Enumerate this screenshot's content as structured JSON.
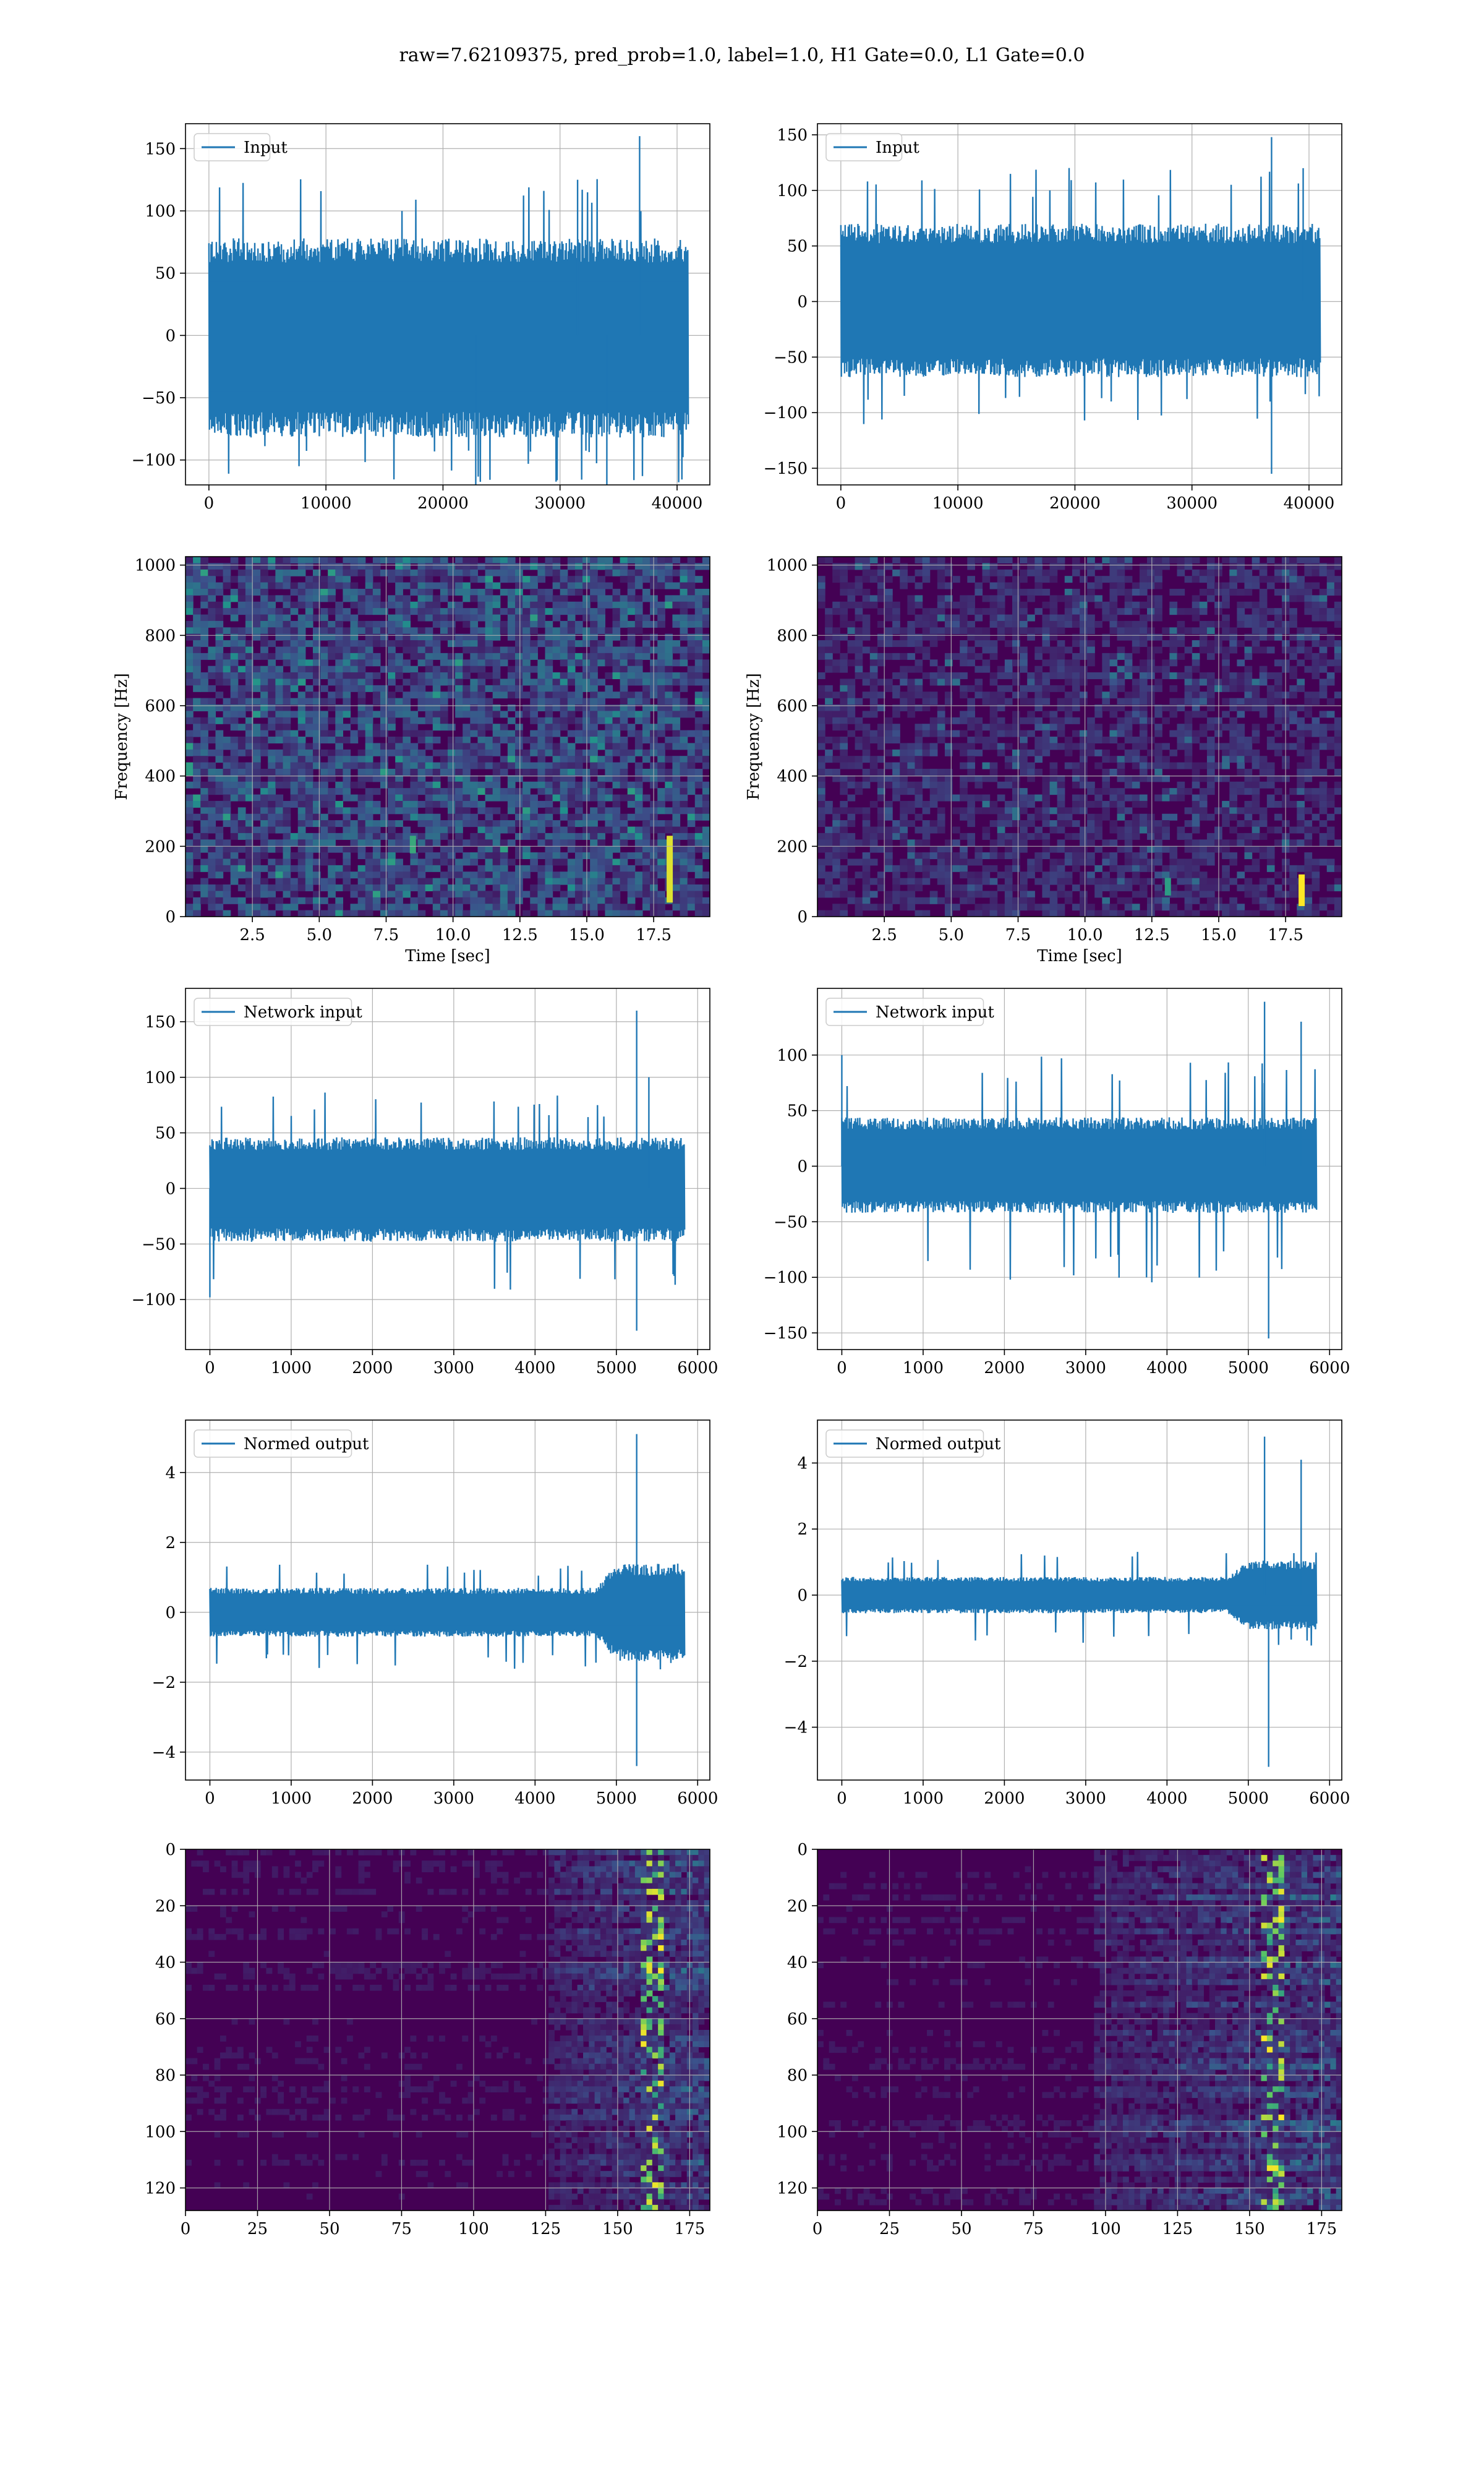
{
  "figure": {
    "title": "raw=7.62109375, pred_prob=1.0, label=1.0, H1 Gate=0.0, L1 Gate=0.0"
  },
  "colors": {
    "series": "#1f77b4",
    "grid": "#b0b0b0",
    "heatmap_low": "#440154",
    "heatmap_high": "#fde725"
  },
  "chart_data": [
    {
      "id": "h1-input",
      "type": "line",
      "row": 0,
      "col": 0,
      "legend": "Input",
      "legend_loc": "upper-left",
      "xlim": [
        -2000,
        42800
      ],
      "ylim": [
        -120,
        170
      ],
      "xticks": [
        0,
        10000,
        20000,
        30000,
        40000
      ],
      "yticks": [
        -100,
        -50,
        0,
        50,
        100,
        150
      ],
      "x_range": [
        0,
        40960
      ],
      "envelope": [
        -82,
        78
      ],
      "spikes_max": [
        118,
        160
      ],
      "spikes_min": [
        -110,
        -128
      ],
      "spike_events": [
        {
          "x": 36800,
          "y": 160
        },
        {
          "x": 34000,
          "y": -128
        },
        {
          "x": 31500,
          "y": 125
        },
        {
          "x": 22800,
          "y": -127
        }
      ]
    },
    {
      "id": "l1-input",
      "type": "line",
      "row": 0,
      "col": 1,
      "legend": "Input",
      "legend_loc": "upper-left",
      "xlim": [
        -2000,
        42800
      ],
      "ylim": [
        -165,
        160
      ],
      "xticks": [
        0,
        10000,
        20000,
        30000,
        40000
      ],
      "yticks": [
        -150,
        -100,
        -50,
        0,
        50,
        100,
        150
      ],
      "x_range": [
        0,
        40960
      ],
      "envelope": [
        -68,
        70
      ],
      "spikes_max": [
        110,
        148
      ],
      "spikes_min": [
        -104,
        -155
      ],
      "spike_events": [
        {
          "x": 36800,
          "y": 148
        },
        {
          "x": 36800,
          "y": -155
        },
        {
          "x": 39500,
          "y": 120
        }
      ]
    },
    {
      "id": "h1-spectrogram",
      "type": "heatmap",
      "row": 1,
      "col": 0,
      "xlabel": "Time [sec]",
      "ylabel": "Frequency [Hz]",
      "xlim": [
        0,
        19.6
      ],
      "ylim": [
        0,
        1024
      ],
      "xticks": [
        2.5,
        5.0,
        7.5,
        10.0,
        12.5,
        15.0,
        17.5
      ],
      "xtick_labels": [
        "2.5",
        "5.0",
        "7.5",
        "10.0",
        "12.5",
        "15.0",
        "17.5"
      ],
      "yticks": [
        0,
        200,
        400,
        600,
        800,
        1000
      ],
      "noise_level": 0.38,
      "features": [
        {
          "x": 18.1,
          "y0": 40,
          "y1": 230,
          "intensity": 0.95
        },
        {
          "x": 8.5,
          "y0": 180,
          "y1": 230,
          "intensity": 0.6
        }
      ]
    },
    {
      "id": "l1-spectrogram",
      "type": "heatmap",
      "row": 1,
      "col": 1,
      "xlabel": "Time [sec]",
      "ylabel": "Frequency [Hz]",
      "xlim": [
        0,
        19.6
      ],
      "ylim": [
        0,
        1024
      ],
      "xticks": [
        2.5,
        5.0,
        7.5,
        10.0,
        12.5,
        15.0,
        17.5
      ],
      "xtick_labels": [
        "2.5",
        "5.0",
        "7.5",
        "10.0",
        "12.5",
        "15.0",
        "17.5"
      ],
      "yticks": [
        0,
        200,
        400,
        600,
        800,
        1000
      ],
      "noise_level": 0.2,
      "features": [
        {
          "x": 18.1,
          "y0": 30,
          "y1": 120,
          "intensity": 1.0
        },
        {
          "x": 13.1,
          "y0": 60,
          "y1": 110,
          "intensity": 0.55
        }
      ]
    },
    {
      "id": "h1-network-input",
      "type": "line",
      "row": 2,
      "col": 0,
      "legend": "Network input",
      "legend_loc": "upper-left",
      "xlim": [
        -300,
        6150
      ],
      "ylim": [
        -145,
        180
      ],
      "xticks": [
        0,
        1000,
        2000,
        3000,
        4000,
        5000,
        6000
      ],
      "yticks": [
        -100,
        -50,
        0,
        50,
        100,
        150
      ],
      "x_range": [
        0,
        5840
      ],
      "envelope": [
        -48,
        46
      ],
      "spikes_max": [
        80,
        160
      ],
      "spikes_min": [
        -90,
        -128
      ],
      "spike_events": [
        {
          "x": 5250,
          "y": 160
        },
        {
          "x": 5250,
          "y": -128
        },
        {
          "x": 0,
          "y": -98
        },
        {
          "x": 5400,
          "y": 100
        }
      ]
    },
    {
      "id": "l1-network-input",
      "type": "line",
      "row": 2,
      "col": 1,
      "legend": "Network input",
      "legend_loc": "upper-left",
      "xlim": [
        -300,
        6150
      ],
      "ylim": [
        -165,
        160
      ],
      "xticks": [
        0,
        1000,
        2000,
        3000,
        4000,
        5000,
        6000
      ],
      "yticks": [
        -150,
        -100,
        -50,
        0,
        50,
        100
      ],
      "x_range": [
        0,
        5840
      ],
      "envelope": [
        -42,
        44
      ],
      "spikes_max": [
        90,
        148
      ],
      "spikes_min": [
        -95,
        -155
      ],
      "spike_events": [
        {
          "x": 5200,
          "y": 148
        },
        {
          "x": 5250,
          "y": -155
        },
        {
          "x": 5650,
          "y": 130
        },
        {
          "x": 0,
          "y": 100
        }
      ]
    },
    {
      "id": "h1-normed-output",
      "type": "line",
      "row": 3,
      "col": 0,
      "legend": "Normed output",
      "legend_loc": "upper-left",
      "xlim": [
        -300,
        6150
      ],
      "ylim": [
        -4.8,
        5.5
      ],
      "xticks": [
        0,
        1000,
        2000,
        3000,
        4000,
        5000,
        6000
      ],
      "yticks": [
        -4,
        -2,
        0,
        2,
        4
      ],
      "x_range": [
        0,
        5840
      ],
      "envelope": [
        -0.7,
        0.7
      ],
      "burst": {
        "start": 4750,
        "end": 5840,
        "amp": 2.0
      },
      "spikes_max": [
        1.3,
        5.1
      ],
      "spikes_min": [
        -1.5,
        -4.4
      ],
      "spike_events": [
        {
          "x": 5250,
          "y": 5.1
        },
        {
          "x": 5250,
          "y": -4.4
        }
      ]
    },
    {
      "id": "l1-normed-output",
      "type": "line",
      "row": 3,
      "col": 1,
      "legend": "Normed output",
      "legend_loc": "upper-left",
      "xlim": [
        -300,
        6150
      ],
      "ylim": [
        -5.6,
        5.3
      ],
      "xticks": [
        0,
        1000,
        2000,
        3000,
        4000,
        5000,
        6000
      ],
      "yticks": [
        -4,
        -2,
        0,
        2,
        4
      ],
      "x_range": [
        0,
        5840
      ],
      "envelope": [
        -0.55,
        0.55
      ],
      "burst": {
        "start": 4750,
        "end": 5840,
        "amp": 1.9
      },
      "spikes_max": [
        1.2,
        4.8
      ],
      "spikes_min": [
        -1.4,
        -5.2
      ],
      "spike_events": [
        {
          "x": 5200,
          "y": 4.8
        },
        {
          "x": 5250,
          "y": -5.2
        },
        {
          "x": 5650,
          "y": 4.1
        }
      ]
    },
    {
      "id": "h1-feature-map",
      "type": "heatmap",
      "row": 4,
      "col": 0,
      "xlim": [
        0,
        182
      ],
      "ylim": [
        128,
        0
      ],
      "xticks": [
        0,
        25,
        50,
        75,
        100,
        125,
        150,
        175
      ],
      "yticks": [
        0,
        20,
        40,
        60,
        80,
        100,
        120
      ],
      "activity_start": 125,
      "activity_peak": 162
    },
    {
      "id": "l1-feature-map",
      "type": "heatmap",
      "row": 4,
      "col": 1,
      "xlim": [
        0,
        182
      ],
      "ylim": [
        128,
        0
      ],
      "xticks": [
        0,
        25,
        50,
        75,
        100,
        125,
        150,
        175
      ],
      "yticks": [
        0,
        20,
        40,
        60,
        80,
        100,
        120
      ],
      "activity_start": 95,
      "activity_peak": 158
    }
  ]
}
